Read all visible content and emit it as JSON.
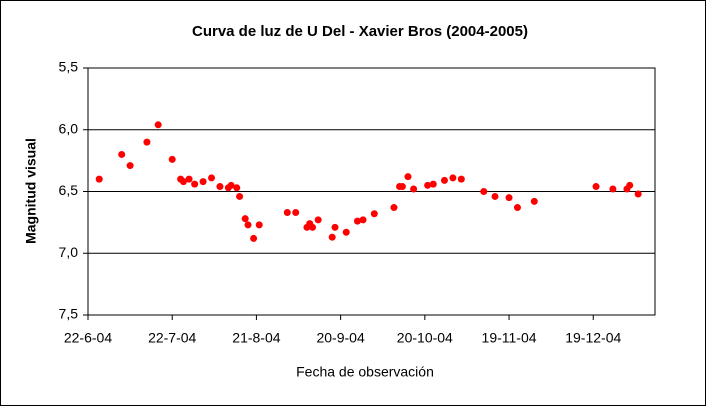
{
  "chart_data": {
    "type": "scatter",
    "title": "Curva de luz de U Del - Xavier Bros (2004-2005)",
    "xlabel": "Fecha de observación",
    "ylabel": "Magnitud visual",
    "color": "#ff0000",
    "y_inverted": true,
    "grid": true,
    "xlim": [
      "2004-06-22",
      "2005-01-10"
    ],
    "xticks": [
      {
        "value": "2004-06-22",
        "label": "22-6-04"
      },
      {
        "value": "2004-07-22",
        "label": "22-7-04"
      },
      {
        "value": "2004-08-21",
        "label": "21-8-04"
      },
      {
        "value": "2004-09-20",
        "label": "20-9-04"
      },
      {
        "value": "2004-10-20",
        "label": "20-10-04"
      },
      {
        "value": "2004-11-19",
        "label": "19-11-04"
      },
      {
        "value": "2004-12-19",
        "label": "19-12-04"
      }
    ],
    "ylim": [
      5.5,
      7.5
    ],
    "yticks": [
      {
        "value": 5.5,
        "label": "5,5"
      },
      {
        "value": 6.0,
        "label": "6,0"
      },
      {
        "value": 6.5,
        "label": "6,5"
      },
      {
        "value": 7.0,
        "label": "7,0"
      },
      {
        "value": 7.5,
        "label": "7,5"
      }
    ],
    "x": [
      "2004-06-26",
      "2004-07-04",
      "2004-07-07",
      "2004-07-13",
      "2004-07-17",
      "2004-07-22",
      "2004-07-25",
      "2004-07-26",
      "2004-07-28",
      "2004-07-30",
      "2004-08-02",
      "2004-08-05",
      "2004-08-08",
      "2004-08-11",
      "2004-08-12",
      "2004-08-14",
      "2004-08-15",
      "2004-08-17",
      "2004-08-18",
      "2004-08-20",
      "2004-08-22",
      "2004-09-01",
      "2004-09-04",
      "2004-09-08",
      "2004-09-09",
      "2004-09-10",
      "2004-09-12",
      "2004-09-17",
      "2004-09-18",
      "2004-09-22",
      "2004-09-26",
      "2004-09-28",
      "2004-10-02",
      "2004-10-09",
      "2004-10-11",
      "2004-10-12",
      "2004-10-14",
      "2004-10-16",
      "2004-10-21",
      "2004-10-23",
      "2004-10-27",
      "2004-10-30",
      "2004-11-02",
      "2004-11-10",
      "2004-11-14",
      "2004-11-19",
      "2004-11-22",
      "2004-11-28",
      "2004-12-20",
      "2004-12-26",
      "2004-12-31",
      "2005-01-01",
      "2005-01-04"
    ],
    "values": [
      6.4,
      6.2,
      6.29,
      6.1,
      5.96,
      6.24,
      6.4,
      6.42,
      6.4,
      6.44,
      6.42,
      6.39,
      6.46,
      6.47,
      6.45,
      6.47,
      6.54,
      6.72,
      6.77,
      6.88,
      6.77,
      6.67,
      6.67,
      6.79,
      6.76,
      6.79,
      6.73,
      6.87,
      6.79,
      6.83,
      6.74,
      6.73,
      6.68,
      6.63,
      6.46,
      6.46,
      6.38,
      6.48,
      6.45,
      6.44,
      6.41,
      6.39,
      6.4,
      6.5,
      6.54,
      6.55,
      6.63,
      6.58,
      6.46,
      6.48,
      6.48,
      6.45,
      6.52
    ]
  }
}
